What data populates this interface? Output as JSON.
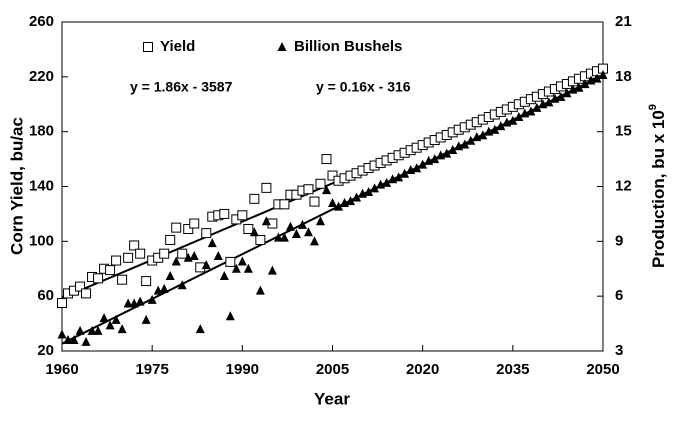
{
  "chart_data": {
    "type": "scatter",
    "xlabel": "Year",
    "ylabel": "Corn Yield, bu/ac",
    "y2label": "Production, bu x 10",
    "y2label_sup": "9",
    "x": [
      1960,
      1961,
      1962,
      1963,
      1964,
      1965,
      1966,
      1967,
      1968,
      1969,
      1970,
      1971,
      1972,
      1973,
      1974,
      1975,
      1976,
      1977,
      1978,
      1979,
      1980,
      1981,
      1982,
      1983,
      1984,
      1985,
      1986,
      1987,
      1988,
      1989,
      1990,
      1991,
      1992,
      1993,
      1994,
      1995,
      1996,
      1997,
      1998,
      1999,
      2000,
      2001,
      2002,
      2003,
      2004,
      2005,
      2006,
      2007,
      2008,
      2009,
      2010,
      2011,
      2012,
      2013,
      2014,
      2015,
      2016,
      2017,
      2018,
      2019,
      2020,
      2021,
      2022,
      2023,
      2024,
      2025,
      2026,
      2027,
      2028,
      2029,
      2030,
      2031,
      2032,
      2033,
      2034,
      2035,
      2036,
      2037,
      2038,
      2039,
      2040,
      2041,
      2042,
      2043,
      2044,
      2045,
      2046,
      2047,
      2048,
      2049,
      2050
    ],
    "series": [
      {
        "name": "Yield",
        "color": "#000000",
        "marker": "square",
        "axis": "y",
        "values": [
          55,
          62,
          64,
          67,
          62,
          74,
          73,
          80,
          79,
          86,
          72,
          88,
          97,
          91,
          71,
          86,
          88,
          91,
          101,
          110,
          91,
          109,
          113,
          81,
          106,
          118,
          119,
          120,
          85,
          116,
          119,
          109,
          131,
          101,
          139,
          113,
          127,
          127,
          134,
          134,
          137,
          138,
          129,
          142,
          160,
          148,
          144.2,
          146.0,
          147.9,
          149.7,
          151.6,
          153.5,
          155.3,
          157.2,
          159.0,
          160.9,
          162.8,
          164.6,
          166.5,
          168.3,
          170.2,
          172.1,
          173.9,
          175.8,
          177.6,
          179.5,
          181.4,
          183.2,
          185.1,
          186.9,
          188.8,
          190.7,
          192.5,
          194.4,
          196.2,
          198.1,
          200.0,
          201.8,
          203.7,
          205.5,
          207.4,
          209.3,
          211.1,
          213.0,
          214.8,
          216.7,
          218.6,
          220.4,
          222.3,
          224.1,
          226.0
        ]
      },
      {
        "name": "Billion Bushels",
        "color": "#000000",
        "marker": "triangle",
        "axis": "y2",
        "values": [
          3.9,
          3.6,
          3.6,
          4.1,
          3.5,
          4.1,
          4.1,
          4.8,
          4.4,
          4.7,
          4.2,
          5.6,
          5.6,
          5.7,
          4.7,
          5.8,
          6.3,
          6.4,
          7.1,
          7.9,
          6.6,
          8.1,
          8.2,
          4.2,
          7.7,
          8.9,
          8.2,
          7.1,
          4.9,
          7.5,
          7.9,
          7.5,
          9.5,
          6.3,
          10.1,
          7.4,
          9.2,
          9.2,
          9.8,
          9.4,
          9.9,
          9.5,
          9.0,
          10.1,
          11.8,
          11.1,
          10.9,
          11.1,
          11.2,
          11.4,
          11.6,
          11.7,
          11.9,
          12.1,
          12.2,
          12.4,
          12.5,
          12.7,
          12.9,
          13.0,
          13.2,
          13.4,
          13.5,
          13.7,
          13.8,
          14.0,
          14.2,
          14.3,
          14.5,
          14.7,
          14.8,
          15.0,
          15.1,
          15.3,
          15.5,
          15.6,
          15.8,
          16.0,
          16.1,
          16.3,
          16.5,
          16.6,
          16.8,
          16.9,
          17.1,
          17.3,
          17.4,
          17.6,
          17.8,
          17.9,
          18.1
        ]
      }
    ],
    "trendlines": [
      {
        "axis": "y",
        "color": "#000000",
        "x": [
          1960,
          2050
        ],
        "values": [
          58.6,
          226
        ]
      },
      {
        "axis": "y2",
        "color": "#000000",
        "x": [
          1960,
          2050
        ],
        "values": [
          3.4,
          18.1
        ]
      }
    ],
    "annotations": [
      "y = 1.86x - 3587",
      "y = 0.16x - 316"
    ],
    "xlim": [
      1960,
      2050
    ],
    "xticks": [
      1960,
      1975,
      1990,
      2005,
      2020,
      2035,
      2050
    ],
    "ylim": [
      20,
      260
    ],
    "yticks": [
      20,
      60,
      100,
      140,
      180,
      220,
      260
    ],
    "y2lim": [
      3,
      21
    ],
    "y2ticks": [
      3,
      6,
      9,
      12,
      15,
      18,
      21
    ],
    "grid": false,
    "legend": "top-left"
  }
}
